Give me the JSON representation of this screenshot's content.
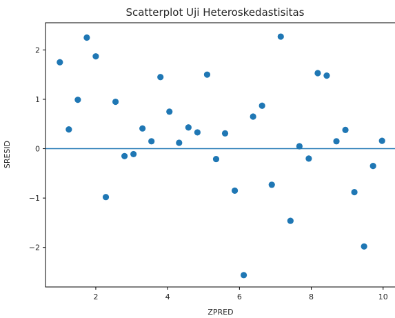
{
  "chart_data": {
    "type": "scatter",
    "title": "Scatterplot Uji Heteroskedastisitas",
    "xlabel": "ZPRED",
    "ylabel": "SRESID",
    "xlim": [
      0.6,
      10.35
    ],
    "ylim": [
      -2.8,
      2.55
    ],
    "x_ticks": [
      2,
      4,
      6,
      8,
      10
    ],
    "x_tick_labels": [
      "2",
      "4",
      "6",
      "8",
      "10"
    ],
    "y_ticks": [
      -2,
      -1,
      0,
      1,
      2
    ],
    "y_tick_labels": [
      "−2",
      "−1",
      "0",
      "1",
      "2"
    ],
    "reference_line_y": 0,
    "grid": false,
    "colors": {
      "points": "#1f77b4",
      "line": "#1f77b4",
      "axes": "#000000"
    },
    "points": [
      {
        "x": 1.0,
        "y": 1.75
      },
      {
        "x": 1.25,
        "y": 0.39
      },
      {
        "x": 1.5,
        "y": 0.99
      },
      {
        "x": 1.75,
        "y": 2.25
      },
      {
        "x": 2.0,
        "y": 1.87
      },
      {
        "x": 2.28,
        "y": -0.98
      },
      {
        "x": 2.55,
        "y": 0.95
      },
      {
        "x": 2.8,
        "y": -0.15
      },
      {
        "x": 3.05,
        "y": -0.11
      },
      {
        "x": 3.3,
        "y": 0.41
      },
      {
        "x": 3.55,
        "y": 0.15
      },
      {
        "x": 3.8,
        "y": 1.45
      },
      {
        "x": 4.05,
        "y": 0.75
      },
      {
        "x": 4.32,
        "y": 0.12
      },
      {
        "x": 4.58,
        "y": 0.43
      },
      {
        "x": 4.83,
        "y": 0.33
      },
      {
        "x": 5.1,
        "y": 1.5
      },
      {
        "x": 5.35,
        "y": -0.21
      },
      {
        "x": 5.6,
        "y": 0.31
      },
      {
        "x": 5.87,
        "y": -0.85
      },
      {
        "x": 6.12,
        "y": -2.56
      },
      {
        "x": 6.38,
        "y": 0.65
      },
      {
        "x": 6.63,
        "y": 0.87
      },
      {
        "x": 6.9,
        "y": -0.73
      },
      {
        "x": 7.15,
        "y": 2.27
      },
      {
        "x": 7.42,
        "y": -1.46
      },
      {
        "x": 7.67,
        "y": 0.05
      },
      {
        "x": 7.93,
        "y": -0.2
      },
      {
        "x": 8.18,
        "y": 1.53
      },
      {
        "x": 8.43,
        "y": 1.48
      },
      {
        "x": 8.7,
        "y": 0.15
      },
      {
        "x": 8.95,
        "y": 0.38
      },
      {
        "x": 9.2,
        "y": -0.88
      },
      {
        "x": 9.47,
        "y": -1.98
      },
      {
        "x": 9.72,
        "y": -0.35
      },
      {
        "x": 9.97,
        "y": 0.16
      }
    ]
  }
}
